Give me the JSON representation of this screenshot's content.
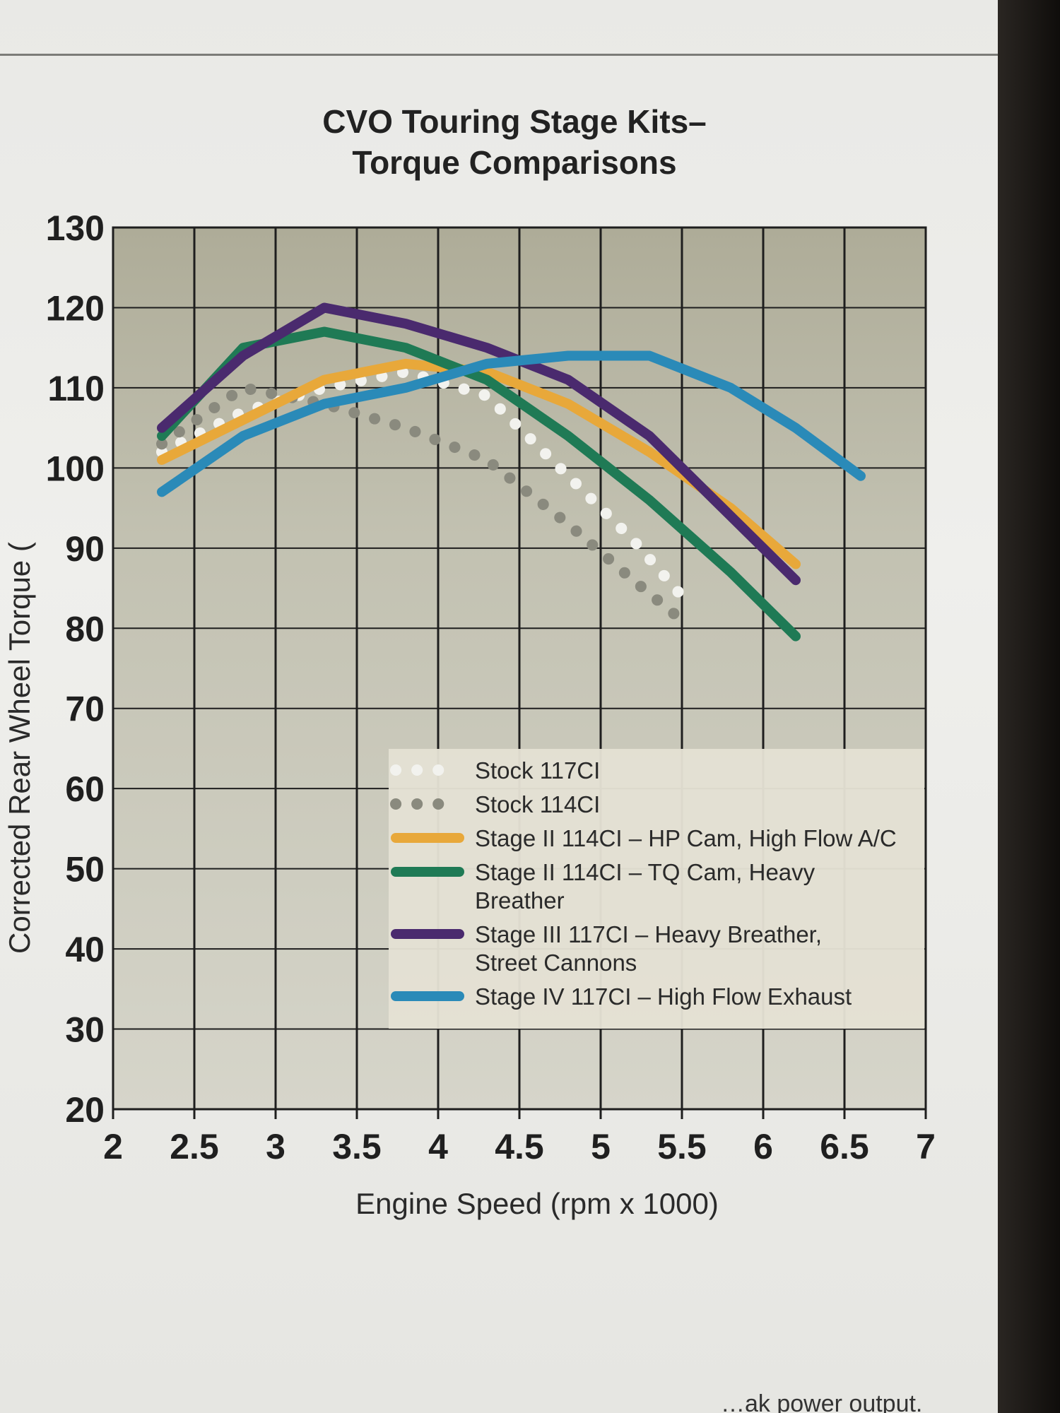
{
  "chart_data": {
    "type": "line",
    "title_lines": [
      "CVO Touring Stage Kits–",
      "Torque Comparisons"
    ],
    "xlabel": "Engine Speed (rpm x 1000)",
    "ylabel": "Corrected Rear Wheel Torque (",
    "xlim": [
      2,
      7
    ],
    "ylim": [
      20,
      130
    ],
    "x_ticks": [
      "2",
      "2.5",
      "3",
      "3.5",
      "4",
      "4.5",
      "5",
      "5.5",
      "6",
      "6.5",
      "7"
    ],
    "y_ticks": [
      "130",
      "120",
      "110",
      "100",
      "90",
      "80",
      "70",
      "60",
      "50",
      "40",
      "30",
      "20"
    ],
    "grid": true,
    "legend_position": "lower-right",
    "series": [
      {
        "name": "Stock 117CI",
        "legend_lines": [
          "Stock 117CI"
        ],
        "color": "#f2f2ee",
        "style": "dotted",
        "x": [
          2.3,
          2.8,
          3.3,
          3.8,
          4.3,
          4.8,
          5.2,
          5.5
        ],
        "y": [
          102,
          107,
          110,
          112,
          109,
          99,
          91,
          84
        ]
      },
      {
        "name": "Stock 114CI",
        "legend_lines": [
          "Stock 114CI"
        ],
        "color": "#8a8a7e",
        "style": "dotted",
        "x": [
          2.3,
          2.8,
          3.3,
          3.8,
          4.3,
          4.8,
          5.2,
          5.5
        ],
        "y": [
          103,
          110,
          108,
          105,
          101,
          93,
          86,
          81
        ]
      },
      {
        "name": "Stage II 114CI – HP Cam, High Flow A/C",
        "legend_lines": [
          "Stage II 114CI – HP Cam, High Flow A/C"
        ],
        "color": "#e8a83a",
        "style": "solid",
        "x": [
          2.3,
          2.8,
          3.3,
          3.8,
          4.3,
          4.8,
          5.3,
          5.8,
          6.2
        ],
        "y": [
          101,
          106,
          111,
          113,
          112,
          108,
          102,
          95,
          88
        ]
      },
      {
        "name": "Stage II 114CI – TQ Cam, Heavy Breather",
        "legend_lines": [
          "Stage II 114CI – TQ Cam, Heavy",
          "Breather"
        ],
        "color": "#1f7a55",
        "style": "solid",
        "x": [
          2.3,
          2.8,
          3.3,
          3.8,
          4.3,
          4.8,
          5.3,
          5.8,
          6.2
        ],
        "y": [
          104,
          115,
          117,
          115,
          111,
          104,
          96,
          87,
          79
        ]
      },
      {
        "name": "Stage III 117CI – Heavy Breather, Street Cannons",
        "legend_lines": [
          "Stage III 117CI – Heavy Breather,",
          "Street Cannons"
        ],
        "color": "#4a2a6e",
        "style": "solid",
        "x": [
          2.3,
          2.8,
          3.3,
          3.8,
          4.3,
          4.8,
          5.3,
          5.8,
          6.2
        ],
        "y": [
          105,
          114,
          120,
          118,
          115,
          111,
          104,
          94,
          86
        ]
      },
      {
        "name": "Stage IV 117CI – High Flow Exhaust",
        "legend_lines": [
          "Stage IV 117CI – High Flow Exhaust"
        ],
        "color": "#2a8ab8",
        "style": "solid",
        "x": [
          2.3,
          2.8,
          3.3,
          3.8,
          4.3,
          4.8,
          5.3,
          5.8,
          6.2,
          6.6
        ],
        "y": [
          97,
          104,
          108,
          110,
          113,
          114,
          114,
          110,
          105,
          99
        ]
      }
    ]
  },
  "footer_fragment": "…ak power output."
}
